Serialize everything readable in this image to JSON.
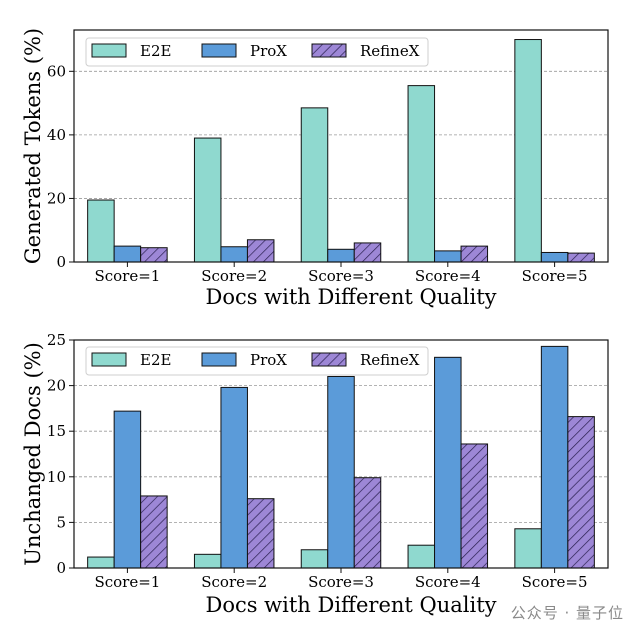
{
  "watermark": "公众号 · 量子位",
  "colors": {
    "e2e": "#8fd9cf",
    "prox": "#5b9bd9",
    "refinex": "#9d87d6",
    "grid": "#9a9a9a"
  },
  "chart_data": [
    {
      "type": "bar",
      "title": "",
      "xlabel": "Docs with Different Quality",
      "ylabel": "Generated Tokens (%)",
      "categories": [
        "Score=1",
        "Score=2",
        "Score=3",
        "Score=4",
        "Score=5"
      ],
      "ylim": [
        0,
        73
      ],
      "yticks": [
        0,
        20,
        40,
        60
      ],
      "grid": true,
      "legend": "top-left",
      "series": [
        {
          "name": "E2E",
          "values": [
            19.5,
            39,
            48.5,
            55.5,
            70
          ]
        },
        {
          "name": "ProX",
          "values": [
            5,
            4.8,
            4,
            3.5,
            3
          ]
        },
        {
          "name": "RefineX",
          "values": [
            4.5,
            7,
            6,
            5,
            2.8
          ]
        }
      ]
    },
    {
      "type": "bar",
      "title": "",
      "xlabel": "Docs with Different Quality",
      "ylabel": "Unchanged Docs (%)",
      "categories": [
        "Score=1",
        "Score=2",
        "Score=3",
        "Score=4",
        "Score=5"
      ],
      "ylim": [
        0,
        25
      ],
      "yticks": [
        0,
        5,
        10,
        15,
        20,
        25
      ],
      "grid": true,
      "legend": "top-left",
      "series": [
        {
          "name": "E2E",
          "values": [
            1.2,
            1.5,
            2,
            2.5,
            4.3
          ]
        },
        {
          "name": "ProX",
          "values": [
            17.2,
            19.8,
            21,
            23.1,
            24.3
          ]
        },
        {
          "name": "RefineX",
          "values": [
            7.9,
            7.6,
            9.9,
            13.6,
            16.6
          ]
        }
      ]
    }
  ]
}
